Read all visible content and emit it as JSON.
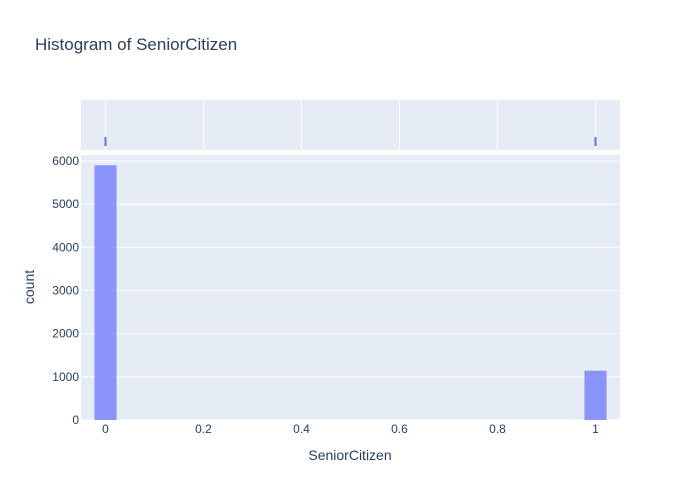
{
  "chart_data": {
    "type": "bar",
    "title": "Histogram of SeniorCitizen",
    "xlabel": "SeniorCitizen",
    "ylabel": "count",
    "xlim": [
      -0.05,
      1.05
    ],
    "ylim": [
      0,
      6000
    ],
    "x_ticks": [
      0,
      0.2,
      0.4,
      0.6,
      0.8,
      1
    ],
    "x_tick_labels": [
      "0",
      "0.2",
      "0.4",
      "0.6",
      "0.8",
      "1"
    ],
    "y_ticks": [
      0,
      1000,
      2000,
      3000,
      4000,
      5000,
      6000
    ],
    "y_tick_labels": [
      "0",
      "1000",
      "2000",
      "3000",
      "4000",
      "5000",
      "6000"
    ],
    "bin_width": 0.045,
    "bins": [
      {
        "x": 0,
        "count": 5901
      },
      {
        "x": 1,
        "count": 1142
      }
    ],
    "rug": [
      0,
      1
    ],
    "grid": true,
    "colors": {
      "bar": "#636efa",
      "plot_bg": "#e5ecf6",
      "grid": "#ffffff",
      "text": "#2a3f5f"
    }
  }
}
